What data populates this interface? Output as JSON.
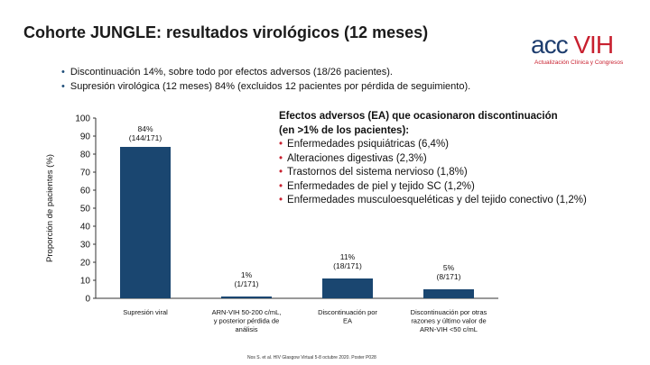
{
  "slide": {
    "title": "Cohorte JUNGLE: resultados virológicos (12 meses)",
    "bullets": [
      "Discontinuación 14%, sobre todo por efectos adversos (18/26 pacientes).",
      "Supresión virológica (12 meses) 84% (excluidos 12 pacientes por pérdida de seguimiento)."
    ],
    "footnote": "Nos S. et al. HIV Glasgow Virtual 5-8 octubre 2020. Poster P028"
  },
  "logo": {
    "acc": "acc",
    "vih": "VIH",
    "subtitle": "Actualización Clínica y Congresos",
    "accent_blue": "#1d3d6e",
    "accent_red": "#c8202f"
  },
  "adverse_events": {
    "heading_line1": "Efectos adversos (EA) que ocasionaron discontinuación",
    "heading_line2": "(en >1% de los pacientes):",
    "items": [
      "Enfermedades psiquiátricas (6,4%)",
      "Alteraciones digestivas (2,3%)",
      "Trastornos del sistema nervioso (1,8%)",
      "Enfermedades de piel y tejido SC (1,2%)",
      "Enfermedades musculoesqueléticas y del tejido conectivo (1,2%)"
    ]
  },
  "chart_data": {
    "type": "bar",
    "title": "",
    "xlabel": "",
    "ylabel": "Proporción de pacientes (%)",
    "ylim": [
      0,
      100
    ],
    "yticks": [
      0,
      10,
      20,
      30,
      40,
      50,
      60,
      70,
      80,
      90,
      100
    ],
    "grid": false,
    "bar_color": "#1a4670",
    "categories": [
      [
        "Supresión viral"
      ],
      [
        "ARN-VIH 50-200 c/mL,",
        "y posterior pérdida de",
        "análisis"
      ],
      [
        "Discontinuación por",
        "EA"
      ],
      [
        "Discontinuación por otras",
        "razones y último valor de",
        "ARN-VIH <50 c/mL"
      ]
    ],
    "values": [
      84,
      1,
      11,
      5
    ],
    "labels_pct": [
      "84%",
      "1%",
      "11%",
      "5%"
    ],
    "labels_n": [
      "(144/171)",
      "(1/171)",
      "(18/171)",
      "(8/171)"
    ]
  }
}
